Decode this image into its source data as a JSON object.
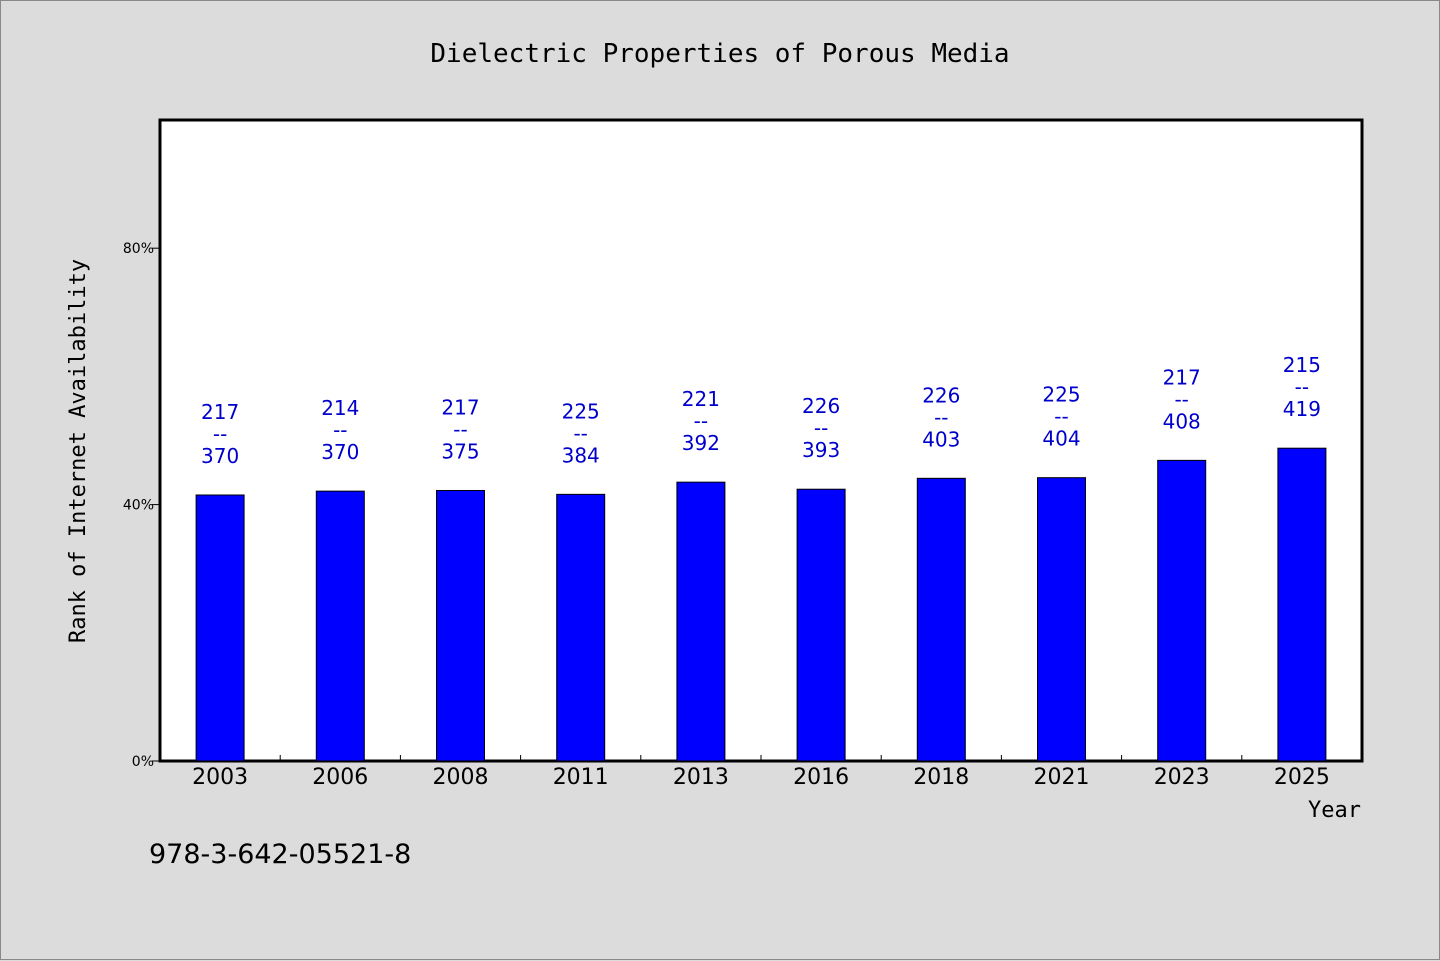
{
  "chart_data": {
    "type": "bar",
    "title": "Dielectric Properties of Porous Media",
    "xlabel": "Year",
    "ylabel": "Rank of Internet Availability",
    "ylim": [
      0,
      100
    ],
    "yticks": [
      "0%",
      "40%",
      "80%"
    ],
    "ytick_values": [
      0,
      40,
      80
    ],
    "grid": false,
    "bar_color": "#0000ff",
    "label_color": "#0000cc",
    "categories": [
      "2003",
      "2006",
      "2008",
      "2011",
      "2013",
      "2016",
      "2018",
      "2021",
      "2023",
      "2025"
    ],
    "values": [
      41.5,
      42.1,
      42.2,
      41.6,
      43.5,
      42.4,
      44.1,
      44.2,
      46.9,
      48.8
    ],
    "labels": [
      [
        "217",
        "--",
        "370"
      ],
      [
        "214",
        "--",
        "370"
      ],
      [
        "217",
        "--",
        "375"
      ],
      [
        "225",
        "--",
        "384"
      ],
      [
        "221",
        "--",
        "392"
      ],
      [
        "226",
        "--",
        "393"
      ],
      [
        "226",
        "--",
        "403"
      ],
      [
        "225",
        "--",
        "404"
      ],
      [
        "217",
        "--",
        "408"
      ],
      [
        "215",
        "--",
        "419"
      ]
    ]
  },
  "footer": {
    "isbn": "978-3-642-05521-8"
  }
}
